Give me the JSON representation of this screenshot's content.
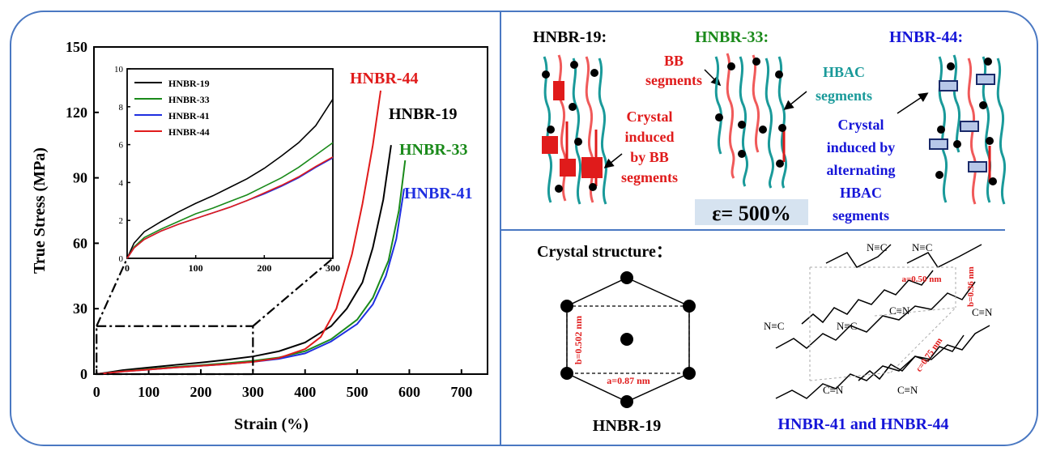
{
  "chart_data": [
    {
      "type": "line",
      "xlabel": "Strain (%)",
      "ylabel": "True Stress (MPa)",
      "xlim": [
        -5,
        750
      ],
      "ylim": [
        0,
        150
      ],
      "xticks": [
        0,
        100,
        200,
        300,
        400,
        500,
        600,
        700
      ],
      "yticks": [
        0,
        30,
        60,
        90,
        120,
        150
      ],
      "series": [
        {
          "name": "HNBR-19",
          "color": "#000000",
          "x": [
            0,
            50,
            100,
            150,
            200,
            250,
            300,
            350,
            400,
            450,
            480,
            510,
            530,
            550,
            565
          ],
          "y": [
            0,
            1.8,
            3.0,
            4.2,
            5.3,
            6.6,
            8.1,
            10.5,
            14.5,
            22,
            30,
            42,
            58,
            80,
            105
          ]
        },
        {
          "name": "HNBR-33",
          "color": "#1a8a1a",
          "x": [
            0,
            50,
            100,
            150,
            200,
            250,
            300,
            350,
            400,
            450,
            500,
            530,
            560,
            580,
            592
          ],
          "y": [
            0,
            1.3,
            2.3,
            3.3,
            4.1,
            5.0,
            6.1,
            7.6,
            10.5,
            16,
            25,
            35,
            52,
            75,
            98
          ]
        },
        {
          "name": "HNBR-41",
          "color": "#1f2fe0",
          "x": [
            0,
            50,
            100,
            150,
            200,
            250,
            300,
            350,
            400,
            450,
            500,
            530,
            555,
            575,
            590
          ],
          "y": [
            0,
            1.2,
            2.1,
            3.0,
            3.8,
            4.6,
            5.6,
            7.0,
            9.5,
            15,
            23,
            32,
            45,
            62,
            85
          ]
        },
        {
          "name": "HNBR-44",
          "color": "#e01b1b",
          "x": [
            0,
            50,
            100,
            150,
            200,
            250,
            300,
            350,
            400,
            430,
            460,
            490,
            510,
            530,
            545
          ],
          "y": [
            0,
            1.2,
            2.1,
            3.0,
            3.8,
            4.6,
            5.6,
            7.4,
            11.5,
            17,
            30,
            55,
            78,
            105,
            130
          ]
        }
      ],
      "annotations": [
        "HNBR-44",
        "HNBR-19",
        "HNBR-33",
        "HNBR-41"
      ],
      "grid": false,
      "zoom_box": {
        "x": [
          0,
          300
        ],
        "y": [
          0,
          22
        ]
      }
    },
    {
      "type": "line",
      "inset": true,
      "xlim": [
        0,
        300
      ],
      "ylim": [
        0,
        10
      ],
      "xticks": [
        0,
        100,
        200,
        300
      ],
      "yticks": [
        0,
        2,
        4,
        6,
        8,
        10
      ],
      "legend": "top-left",
      "series": [
        {
          "name": "HNBR-19",
          "color": "#000000",
          "x": [
            0,
            10,
            25,
            50,
            75,
            100,
            125,
            150,
            175,
            200,
            225,
            250,
            275,
            300
          ],
          "y": [
            0,
            0.8,
            1.4,
            1.95,
            2.45,
            2.9,
            3.3,
            3.75,
            4.2,
            4.75,
            5.4,
            6.1,
            7.0,
            8.4
          ]
        },
        {
          "name": "HNBR-33",
          "color": "#1a8a1a",
          "x": [
            0,
            10,
            25,
            50,
            75,
            100,
            125,
            150,
            175,
            200,
            225,
            250,
            275,
            300
          ],
          "y": [
            0,
            0.6,
            1.1,
            1.55,
            1.95,
            2.35,
            2.65,
            3.0,
            3.35,
            3.8,
            4.25,
            4.8,
            5.45,
            6.1
          ]
        },
        {
          "name": "HNBR-41",
          "color": "#1f2fe0",
          "x": [
            0,
            10,
            25,
            50,
            75,
            100,
            125,
            150,
            175,
            200,
            225,
            250,
            275,
            300
          ],
          "y": [
            0,
            0.55,
            1.0,
            1.45,
            1.8,
            2.1,
            2.4,
            2.7,
            3.05,
            3.4,
            3.8,
            4.25,
            4.8,
            5.3
          ]
        },
        {
          "name": "HNBR-44",
          "color": "#e01b1b",
          "x": [
            0,
            10,
            25,
            50,
            75,
            100,
            125,
            150,
            175,
            200,
            225,
            250,
            275,
            300
          ],
          "y": [
            0,
            0.55,
            1.0,
            1.45,
            1.8,
            2.1,
            2.4,
            2.7,
            3.05,
            3.45,
            3.85,
            4.3,
            4.85,
            5.35
          ]
        }
      ]
    }
  ],
  "schematic": {
    "titles": {
      "hnbr19": "HNBR-19:",
      "hnbr33": "HNBR-33:",
      "hnbr44": "HNBR-44:"
    },
    "bb_label_1": "BB",
    "bb_label_2": "segments",
    "hbac_label_1": "HBAC",
    "hbac_label_2": "segments",
    "crystal_bb": [
      "Crystal",
      "induced",
      "by BB",
      "segments"
    ],
    "crystal_hbac": [
      "Crystal",
      "induced by",
      "alternating",
      "HBAC",
      "segments"
    ],
    "strain_label": "ε= 500%",
    "colors": {
      "red": "#e01b1b",
      "green": "#1a8a1a",
      "teal": "#1a9a9a",
      "blue": "#1515d8",
      "black": "#000000"
    }
  },
  "crystal": {
    "heading": "Crystal structure：",
    "a_label": "a=0.87 nm",
    "b_label": "b=0.502 nm",
    "hex_caption": "HNBR-19",
    "lattice_a": "a=0.50 nm",
    "lattice_b": "b=0.36 nm",
    "lattice_c": "c=0.75 nm",
    "cn_left_1": "N≡C",
    "cn_left_2": "N≡C",
    "cn_left_3": "N≡C",
    "cn_left_4": "N≡C",
    "cn_right_1": "C≡N",
    "cn_right_2": "C≡N",
    "cn_right_3": "C≡N",
    "cn_right_4": "C≡N",
    "lattice_caption": "HNBR-41 and HNBR-44"
  }
}
